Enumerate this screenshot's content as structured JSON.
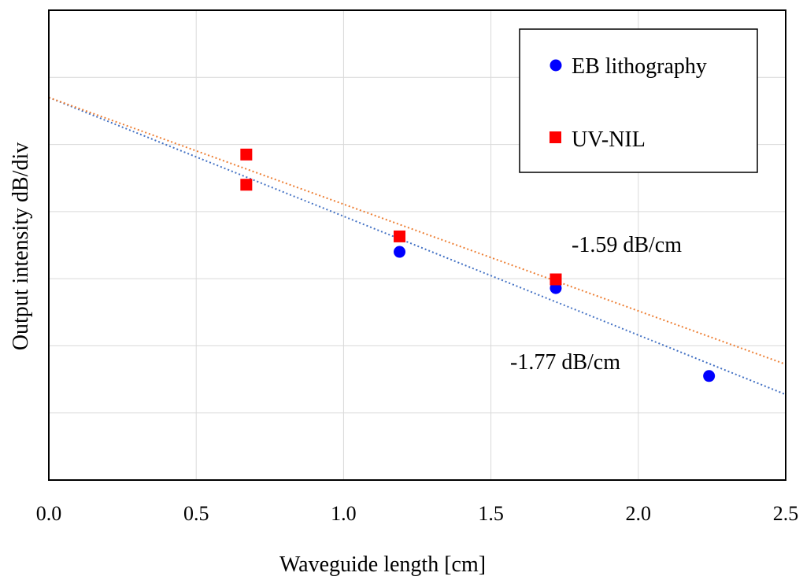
{
  "chart_data": {
    "type": "scatter",
    "xlabel": "Waveguide length [cm]",
    "ylabel": "Output intensity  dB/div",
    "xlim": [
      0,
      2.5
    ],
    "ylim": [
      0,
      7
    ],
    "x_ticks": [
      "0.0",
      "0.5",
      "1.0",
      "1.5",
      "2.0",
      "2.5"
    ],
    "grid": true,
    "legend_position": "top-right",
    "series": [
      {
        "name": "EB lithography",
        "marker": "circle",
        "color": "#0000ff",
        "points": [
          {
            "x": 1.19,
            "y": 3.4
          },
          {
            "x": 1.72,
            "y": 2.86
          },
          {
            "x": 2.24,
            "y": 1.55
          }
        ],
        "trendline": {
          "intercept": 5.7,
          "slope": -1.77,
          "color": "#4472c4",
          "label": "-1.77 dB/cm"
        }
      },
      {
        "name": "UV-NIL",
        "marker": "square",
        "color": "#ff0000",
        "points": [
          {
            "x": 0.67,
            "y": 4.85
          },
          {
            "x": 0.67,
            "y": 4.4
          },
          {
            "x": 1.19,
            "y": 3.63
          },
          {
            "x": 1.72,
            "y": 2.99
          }
        ],
        "trendline": {
          "intercept": 5.7,
          "slope": -1.59,
          "color": "#ed7d31",
          "label": "-1.59 dB/cm"
        }
      }
    ]
  }
}
